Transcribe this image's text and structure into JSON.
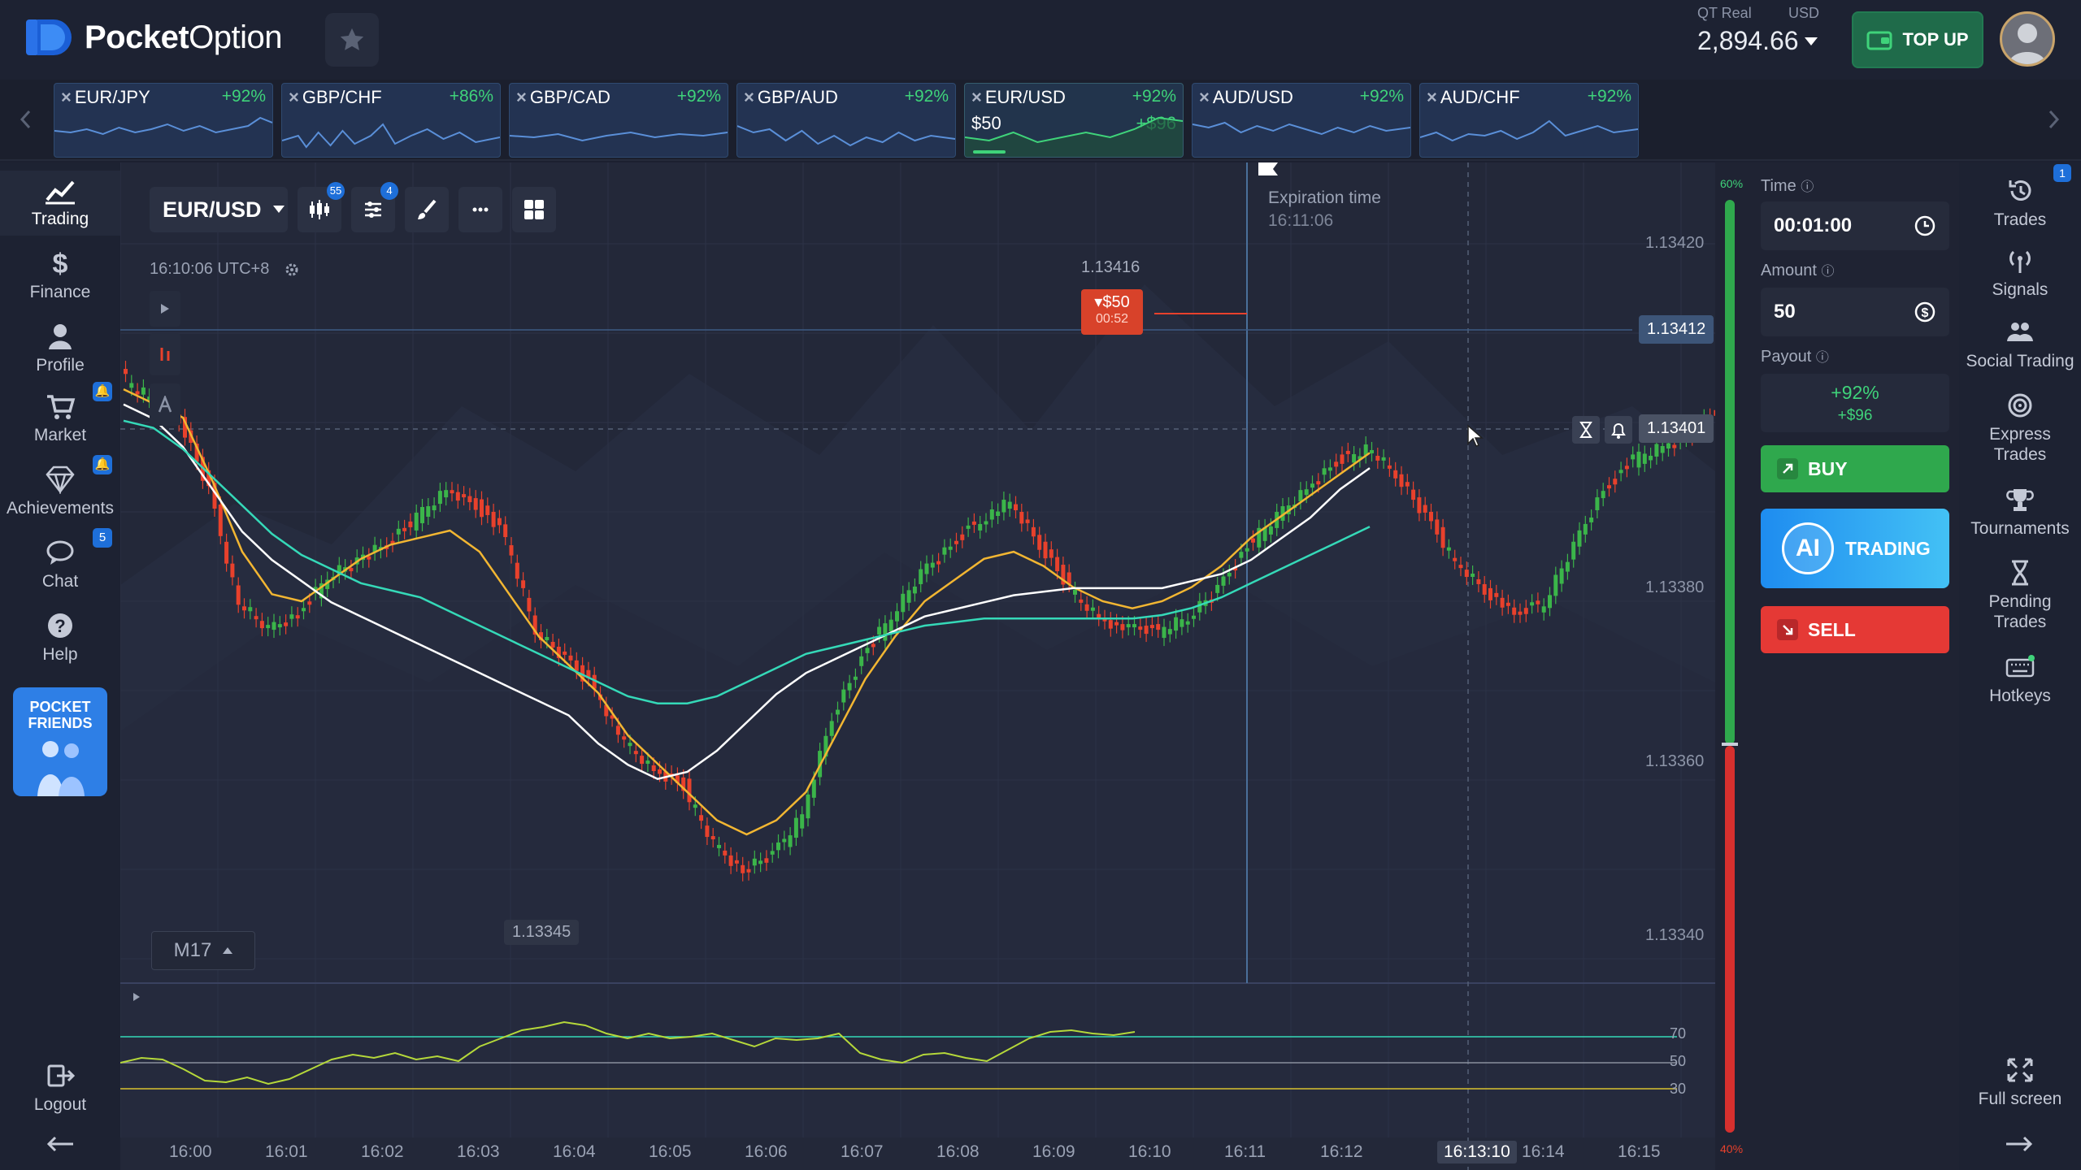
{
  "brand": {
    "name_bold": "Pocket",
    "name_light": "Option"
  },
  "account": {
    "type": "QT Real",
    "currency": "USD",
    "balance": "2,894.66"
  },
  "topup_label": "TOP UP",
  "asset_tabs": [
    {
      "name": "EUR/JPY",
      "payout": "+92%"
    },
    {
      "name": "GBP/CHF",
      "payout": "+86%"
    },
    {
      "name": "GBP/CAD",
      "payout": "+92%"
    },
    {
      "name": "GBP/AUD",
      "payout": "+92%"
    },
    {
      "name": "EUR/USD",
      "payout": "+92%",
      "amount": "$50",
      "profit": "+$96",
      "active": true
    },
    {
      "name": "AUD/USD",
      "payout": "+92%"
    },
    {
      "name": "AUD/CHF",
      "payout": "+92%"
    }
  ],
  "left_nav": {
    "trading": "Trading",
    "finance": "Finance",
    "profile": "Profile",
    "market": "Market",
    "achievements": "Achievements",
    "chat": "Chat",
    "chat_badge": "5",
    "help": "Help",
    "pocket_friends": "POCKET FRIENDS",
    "logout": "Logout"
  },
  "chart": {
    "pair": "EUR/USD",
    "indicators_badge": "55",
    "settings_badge": "4",
    "clock": "16:10:06 UTC+8",
    "timeframe": "M17",
    "expiration_label": "Expiration time",
    "expiration_time": "16:11:06",
    "high_label": "1.13416",
    "low_label": "1.13345",
    "y_ticks": [
      "1.13420",
      "1.13380",
      "1.13360",
      "1.13340"
    ],
    "open_price": "1.13412",
    "current_price": "1.13401",
    "trade_flag_amount": "$50",
    "trade_flag_timer": "00:52",
    "x_ticks": [
      "16:00",
      "16:01",
      "16:02",
      "16:03",
      "16:04",
      "16:05",
      "16:06",
      "16:07",
      "16:08",
      "16:09",
      "16:10",
      "16:11",
      "16:12",
      "16:13:10",
      "16:14",
      "16:15"
    ],
    "osc_levels": [
      "70",
      "50",
      "30"
    ],
    "buy_pct": "60%",
    "sell_pct": "40%"
  },
  "panel": {
    "time_label": "Time",
    "time_value": "00:01:00",
    "amount_label": "Amount",
    "amount_value": "50",
    "payout_label": "Payout",
    "payout_pct": "+92%",
    "payout_amt": "+$96",
    "buy_label": "BUY",
    "ai_label": "TRADING",
    "ai_circle": "AI",
    "sell_label": "SELL"
  },
  "right_nav": {
    "trades": "Trades",
    "trades_badge": "1",
    "signals": "Signals",
    "social": "Social Trading",
    "express": "Express Trades",
    "tournaments": "Tournaments",
    "pending": "Pending Trades",
    "hotkeys": "Hotkeys",
    "fullscreen": "Full screen"
  },
  "colors": {
    "bull": "#3bb54a",
    "bear": "#e8412c",
    "ma_fast": "#f2b632",
    "ma_mid": "#ffffff",
    "ma_slow": "#35d9b8",
    "accent": "#1e6fd9"
  }
}
